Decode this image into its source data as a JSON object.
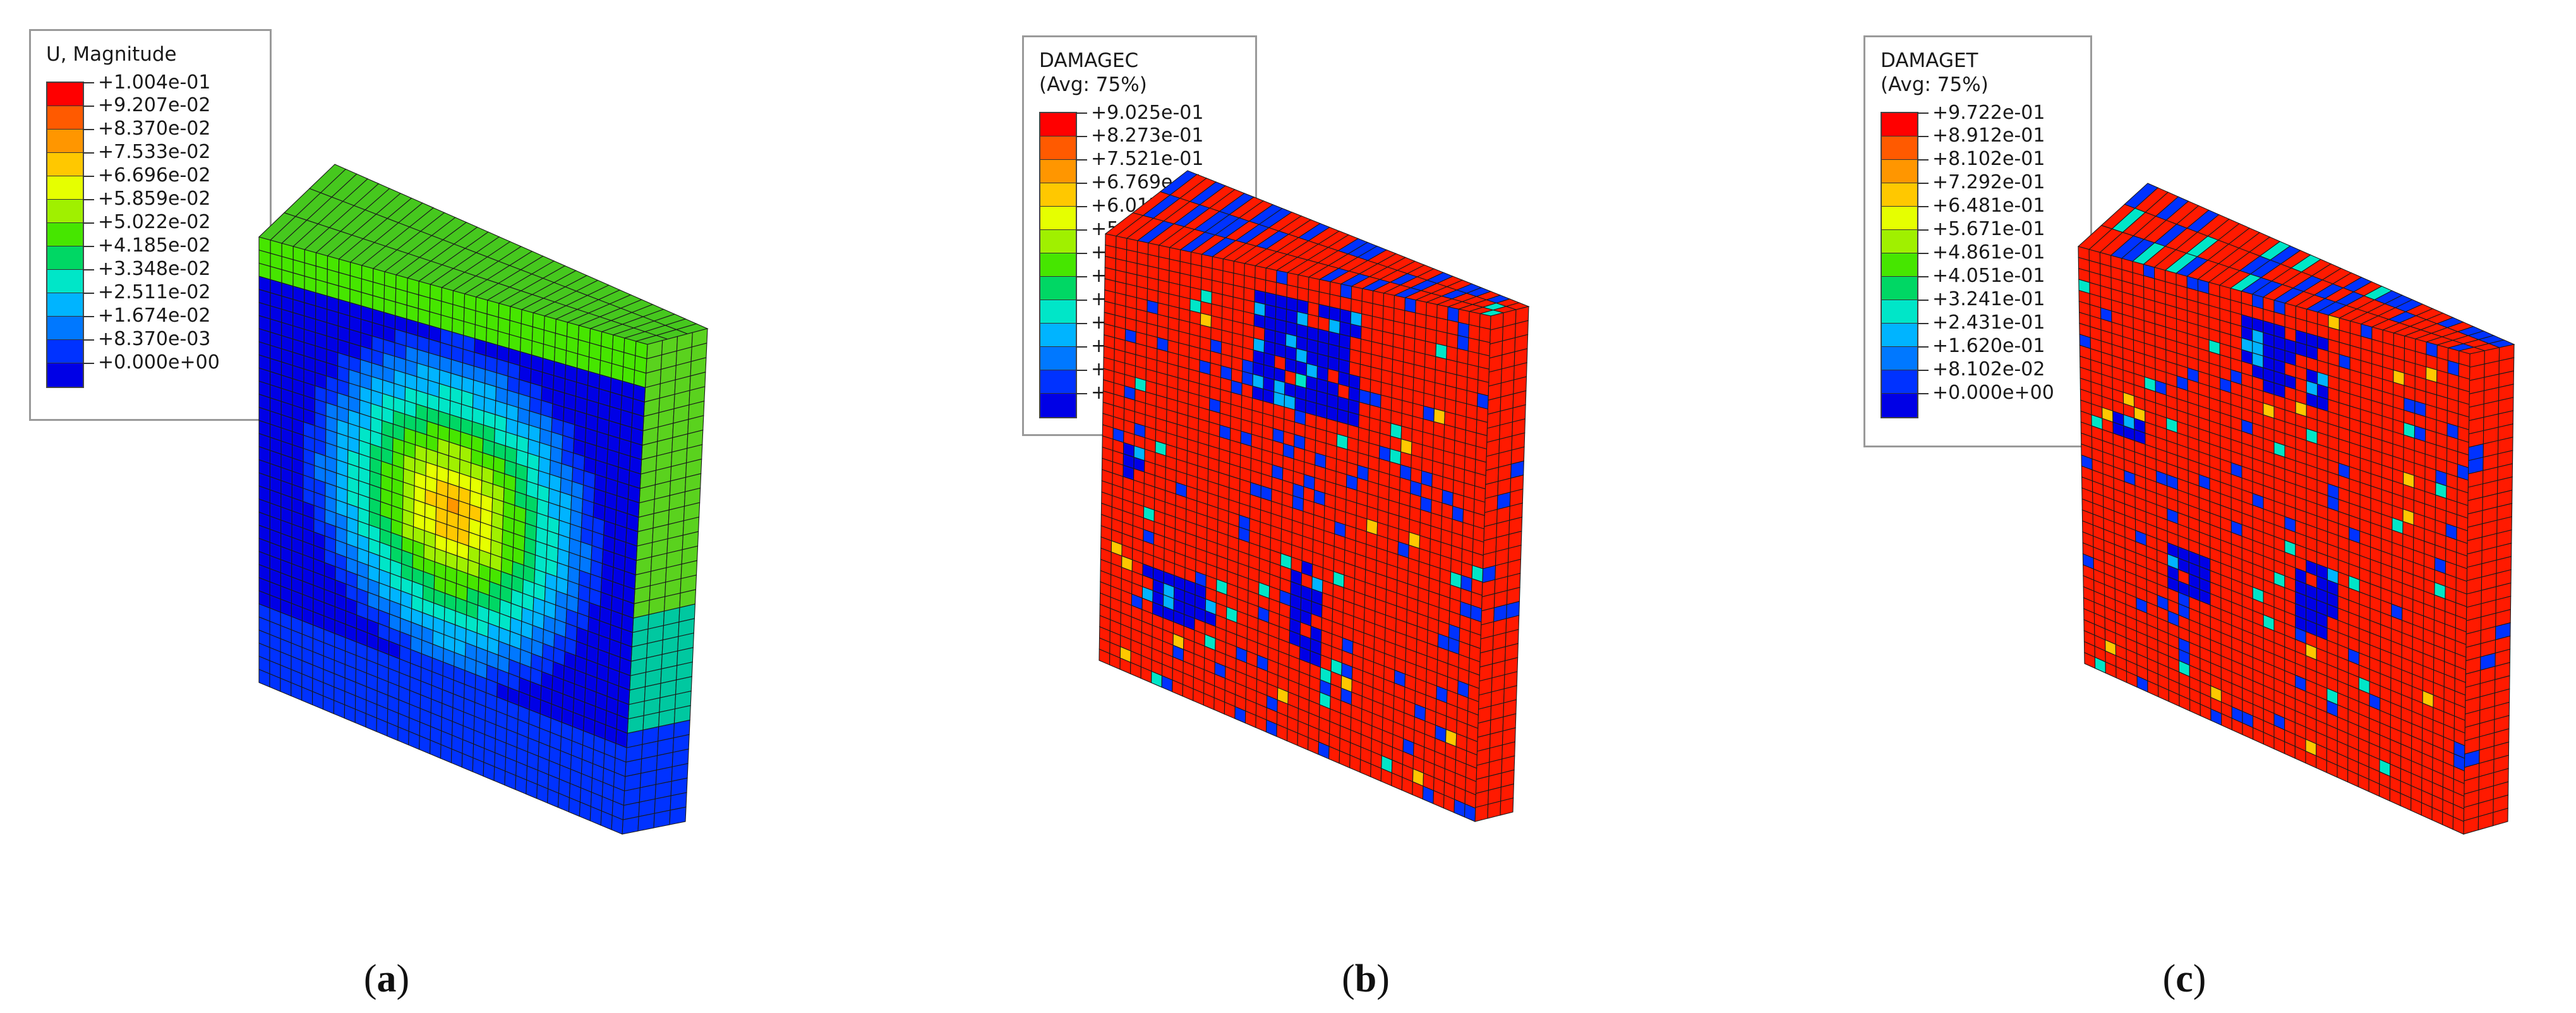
{
  "panels": [
    {
      "id": "a",
      "caption_letter": "a",
      "legend": {
        "title_lines": [
          "U, Magnitude"
        ],
        "colors": [
          "#ff0000",
          "#ff5a00",
          "#ff9600",
          "#ffc800",
          "#e6ff00",
          "#a0f000",
          "#46e600",
          "#00d764",
          "#00e6c8",
          "#00b4ff",
          "#0078ff",
          "#0032ff",
          "#0000e6"
        ],
        "values": [
          "+1.004e-01",
          "+9.207e-02",
          "+8.370e-02",
          "+7.533e-02",
          "+6.696e-02",
          "+5.859e-02",
          "+5.022e-02",
          "+4.185e-02",
          "+3.348e-02",
          "+2.511e-02",
          "+1.674e-02",
          "+8.370e-03",
          "+0.000e+00"
        ]
      }
    },
    {
      "id": "b",
      "caption_letter": "b",
      "legend": {
        "title_lines": [
          "DAMAGEC",
          "(Avg: 75%)"
        ],
        "colors": [
          "#ff0000",
          "#ff5a00",
          "#ff9600",
          "#ffc800",
          "#e6ff00",
          "#a0f000",
          "#46e600",
          "#00d764",
          "#00e6c8",
          "#00b4ff",
          "#0078ff",
          "#0032ff",
          "#0000e6"
        ],
        "values": [
          "+9.025e-01",
          "+8.273e-01",
          "+7.521e-01",
          "+6.769e-01",
          "+6.017e-01",
          "+5.265e-01",
          "+4.512e-01",
          "+3.760e-01",
          "+3.008e-01",
          "+2.256e-01",
          "+1.504e-01",
          "+7.521e-02",
          "+0.000e+00"
        ]
      }
    },
    {
      "id": "c",
      "caption_letter": "c",
      "legend": {
        "title_lines": [
          "DAMAGET",
          "(Avg: 75%)"
        ],
        "colors": [
          "#ff0000",
          "#ff5a00",
          "#ff9600",
          "#ffc800",
          "#e6ff00",
          "#a0f000",
          "#46e600",
          "#00d764",
          "#00e6c8",
          "#00b4ff",
          "#0078ff",
          "#0032ff",
          "#0000e6"
        ],
        "values": [
          "+9.722e-01",
          "+8.912e-01",
          "+8.102e-01",
          "+7.292e-01",
          "+6.481e-01",
          "+5.671e-01",
          "+4.861e-01",
          "+4.051e-01",
          "+3.241e-01",
          "+2.431e-01",
          "+1.620e-01",
          "+8.102e-02",
          "+0.000e+00"
        ]
      }
    }
  ]
}
